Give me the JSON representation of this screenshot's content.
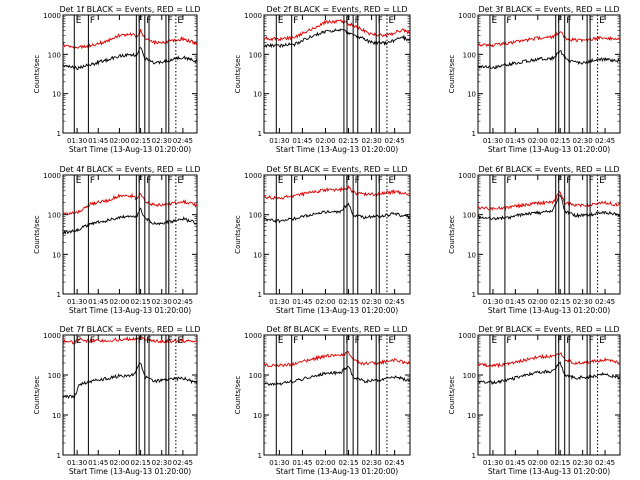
{
  "page": {
    "background": "#ffffff"
  },
  "colors": {
    "events": "#000000",
    "lld": "#e00000",
    "axes": "#000000"
  },
  "shared": {
    "xlabel": "Start Time (13-Aug-13 01:20:00)",
    "ylabel": "Counts/sec",
    "x_ticks": [
      "01:30",
      "01:45",
      "02:00",
      "02:15",
      "02:30",
      "02:45"
    ],
    "y_ticks": [
      "1",
      "10",
      "100",
      "1000"
    ],
    "vlines": [
      {
        "t": "01:28",
        "style": "solid",
        "label": "E"
      },
      {
        "t": "01:38",
        "style": "solid",
        "label": "F"
      },
      {
        "t": "02:12",
        "style": "solid",
        "label": "F"
      },
      {
        "t": "02:14",
        "style": "solid",
        "label": ""
      },
      {
        "t": "02:18",
        "style": "solid",
        "label": "F"
      },
      {
        "t": "02:21",
        "style": "solid",
        "label": ""
      },
      {
        "t": "02:33",
        "style": "solid",
        "label": "F"
      },
      {
        "t": "02:35",
        "style": "solid",
        "label": ""
      },
      {
        "t": "02:40",
        "style": "dotted",
        "label": "E"
      }
    ]
  },
  "chart_data": [
    {
      "type": "line",
      "title": "Det 1f BLACK = Events, RED = LLD",
      "x_range": [
        "01:20",
        "02:55"
      ],
      "y_range": [
        1,
        1000
      ],
      "y_scale": "log",
      "series": [
        {
          "color": "#000000",
          "x": [
            "01:20",
            "01:30",
            "01:40",
            "01:50",
            "02:00",
            "02:10",
            "02:12",
            "02:15",
            "02:18",
            "02:25",
            "02:35",
            "02:45",
            "02:55"
          ],
          "y": [
            50,
            45,
            55,
            70,
            90,
            100,
            90,
            160,
            80,
            60,
            70,
            85,
            65
          ]
        },
        {
          "color": "#e00000",
          "x": [
            "01:20",
            "01:30",
            "01:40",
            "01:50",
            "02:00",
            "02:10",
            "02:12",
            "02:15",
            "02:18",
            "02:25",
            "02:35",
            "02:45",
            "02:55"
          ],
          "y": [
            170,
            150,
            170,
            210,
            300,
            330,
            260,
            400,
            250,
            200,
            210,
            250,
            190
          ]
        }
      ]
    },
    {
      "type": "line",
      "title": "Det 2f BLACK = Events, RED = LLD",
      "x_range": [
        "01:20",
        "02:55"
      ],
      "y_range": [
        1,
        1000
      ],
      "y_scale": "log",
      "series": [
        {
          "color": "#000000",
          "x": [
            "01:20",
            "01:30",
            "01:40",
            "01:50",
            "02:00",
            "02:10",
            "02:20",
            "02:30",
            "02:40",
            "02:50",
            "02:55"
          ],
          "y": [
            170,
            165,
            180,
            280,
            390,
            420,
            300,
            200,
            190,
            280,
            220
          ]
        },
        {
          "color": "#e00000",
          "x": [
            "01:20",
            "01:30",
            "01:40",
            "01:50",
            "02:00",
            "02:10",
            "02:20",
            "02:30",
            "02:40",
            "02:50",
            "02:55"
          ],
          "y": [
            260,
            240,
            270,
            430,
            650,
            710,
            500,
            320,
            300,
            420,
            330
          ]
        }
      ]
    },
    {
      "type": "line",
      "title": "Det 3f BLACK = Events, RED = LLD",
      "x_range": [
        "01:20",
        "02:55"
      ],
      "y_range": [
        1,
        1000
      ],
      "y_scale": "log",
      "series": [
        {
          "color": "#000000",
          "x": [
            "01:20",
            "01:30",
            "01:40",
            "01:50",
            "02:00",
            "02:10",
            "02:15",
            "02:20",
            "02:30",
            "02:40",
            "02:55"
          ],
          "y": [
            50,
            45,
            55,
            65,
            75,
            80,
            120,
            70,
            60,
            75,
            70
          ]
        },
        {
          "color": "#e00000",
          "x": [
            "01:20",
            "01:30",
            "01:40",
            "01:50",
            "02:00",
            "02:10",
            "02:15",
            "02:20",
            "02:30",
            "02:40",
            "02:55"
          ],
          "y": [
            180,
            170,
            190,
            220,
            260,
            280,
            360,
            240,
            220,
            260,
            240
          ]
        }
      ]
    },
    {
      "type": "line",
      "title": "Det 4f BLACK = Events, RED = LLD",
      "x_range": [
        "01:20",
        "02:55"
      ],
      "y_range": [
        1,
        1000
      ],
      "y_scale": "log",
      "series": [
        {
          "color": "#000000",
          "x": [
            "01:20",
            "01:30",
            "01:40",
            "01:50",
            "02:00",
            "02:10",
            "02:12",
            "02:15",
            "02:18",
            "02:25",
            "02:35",
            "02:45",
            "02:55"
          ],
          "y": [
            35,
            40,
            60,
            70,
            85,
            95,
            85,
            140,
            80,
            60,
            65,
            80,
            60
          ]
        },
        {
          "color": "#e00000",
          "x": [
            "01:20",
            "01:30",
            "01:40",
            "01:50",
            "02:00",
            "02:10",
            "02:12",
            "02:15",
            "02:18",
            "02:25",
            "02:35",
            "02:45",
            "02:55"
          ],
          "y": [
            110,
            110,
            190,
            220,
            300,
            300,
            240,
            350,
            220,
            170,
            180,
            220,
            170
          ]
        }
      ]
    },
    {
      "type": "line",
      "title": "Det 5f BLACK = Events, RED = LLD",
      "x_range": [
        "01:20",
        "02:55"
      ],
      "y_range": [
        1,
        1000
      ],
      "y_scale": "log",
      "series": [
        {
          "color": "#000000",
          "x": [
            "01:20",
            "01:30",
            "01:40",
            "01:50",
            "02:00",
            "02:10",
            "02:15",
            "02:18",
            "02:25",
            "02:35",
            "02:45",
            "02:55"
          ],
          "y": [
            75,
            70,
            80,
            100,
            115,
            120,
            200,
            100,
            85,
            90,
            105,
            85
          ]
        },
        {
          "color": "#e00000",
          "x": [
            "01:20",
            "01:30",
            "01:40",
            "01:50",
            "02:00",
            "02:10",
            "02:15",
            "02:18",
            "02:25",
            "02:35",
            "02:45",
            "02:55"
          ],
          "y": [
            280,
            260,
            300,
            360,
            420,
            430,
            500,
            360,
            320,
            330,
            380,
            320
          ]
        }
      ]
    },
    {
      "type": "line",
      "title": "Det 6f BLACK = Events, RED = LLD",
      "x_range": [
        "01:20",
        "02:55"
      ],
      "y_range": [
        1,
        1000
      ],
      "y_scale": "log",
      "series": [
        {
          "color": "#000000",
          "x": [
            "01:20",
            "01:30",
            "01:40",
            "01:50",
            "02:00",
            "02:10",
            "02:15",
            "02:18",
            "02:25",
            "02:35",
            "02:45",
            "02:55"
          ],
          "y": [
            90,
            80,
            85,
            100,
            110,
            120,
            330,
            120,
            95,
            100,
            115,
            100
          ]
        },
        {
          "color": "#e00000",
          "x": [
            "01:20",
            "01:30",
            "01:40",
            "01:50",
            "02:00",
            "02:10",
            "02:15",
            "02:18",
            "02:25",
            "02:35",
            "02:45",
            "02:55"
          ],
          "y": [
            150,
            140,
            150,
            175,
            195,
            205,
            380,
            200,
            170,
            175,
            200,
            175
          ]
        }
      ]
    },
    {
      "type": "line",
      "title": "Det 7f BLACK = Events, RED = LLD",
      "x_range": [
        "01:20",
        "02:55"
      ],
      "y_range": [
        1,
        1000
      ],
      "y_scale": "log",
      "series": [
        {
          "color": "#000000",
          "x": [
            "01:20",
            "01:28",
            "01:32",
            "01:40",
            "01:50",
            "02:00",
            "02:10",
            "02:15",
            "02:18",
            "02:25",
            "02:35",
            "02:45",
            "02:55"
          ],
          "y": [
            30,
            28,
            60,
            70,
            80,
            95,
            100,
            210,
            90,
            70,
            75,
            85,
            60
          ]
        },
        {
          "color": "#e00000",
          "x": [
            "01:20",
            "01:28",
            "01:32",
            "01:40",
            "01:50",
            "02:00",
            "02:10",
            "02:15",
            "02:18",
            "02:25",
            "02:35",
            "02:45",
            "02:55"
          ],
          "y": [
            700,
            650,
            760,
            700,
            720,
            780,
            800,
            820,
            760,
            700,
            700,
            720,
            680
          ]
        }
      ]
    },
    {
      "type": "line",
      "title": "Det 8f BLACK = Events, RED = LLD",
      "x_range": [
        "01:20",
        "02:55"
      ],
      "y_range": [
        1,
        1000
      ],
      "y_scale": "log",
      "series": [
        {
          "color": "#000000",
          "x": [
            "01:20",
            "01:30",
            "01:40",
            "01:50",
            "02:00",
            "02:10",
            "02:15",
            "02:18",
            "02:25",
            "02:35",
            "02:45",
            "02:55"
          ],
          "y": [
            60,
            60,
            70,
            90,
            110,
            115,
            170,
            90,
            70,
            75,
            90,
            70
          ]
        },
        {
          "color": "#e00000",
          "x": [
            "01:20",
            "01:30",
            "01:40",
            "01:50",
            "02:00",
            "02:10",
            "02:15",
            "02:18",
            "02:25",
            "02:35",
            "02:45",
            "02:55"
          ],
          "y": [
            180,
            170,
            190,
            240,
            300,
            310,
            380,
            240,
            190,
            200,
            240,
            190
          ]
        }
      ]
    },
    {
      "type": "line",
      "title": "Det 9f BLACK = Events, RED = LLD",
      "x_range": [
        "01:20",
        "02:55"
      ],
      "y_range": [
        1,
        1000
      ],
      "y_scale": "log",
      "series": [
        {
          "color": "#000000",
          "x": [
            "01:20",
            "01:30",
            "01:40",
            "01:50",
            "02:00",
            "02:10",
            "02:15",
            "02:18",
            "02:25",
            "02:35",
            "02:45",
            "02:55"
          ],
          "y": [
            70,
            65,
            75,
            95,
            115,
            125,
            210,
            100,
            85,
            90,
            105,
            85
          ]
        },
        {
          "color": "#e00000",
          "x": [
            "01:20",
            "01:30",
            "01:40",
            "01:50",
            "02:00",
            "02:10",
            "02:15",
            "02:18",
            "02:25",
            "02:35",
            "02:45",
            "02:55"
          ],
          "y": [
            180,
            170,
            190,
            230,
            280,
            300,
            350,
            240,
            200,
            210,
            240,
            200
          ]
        }
      ]
    }
  ]
}
